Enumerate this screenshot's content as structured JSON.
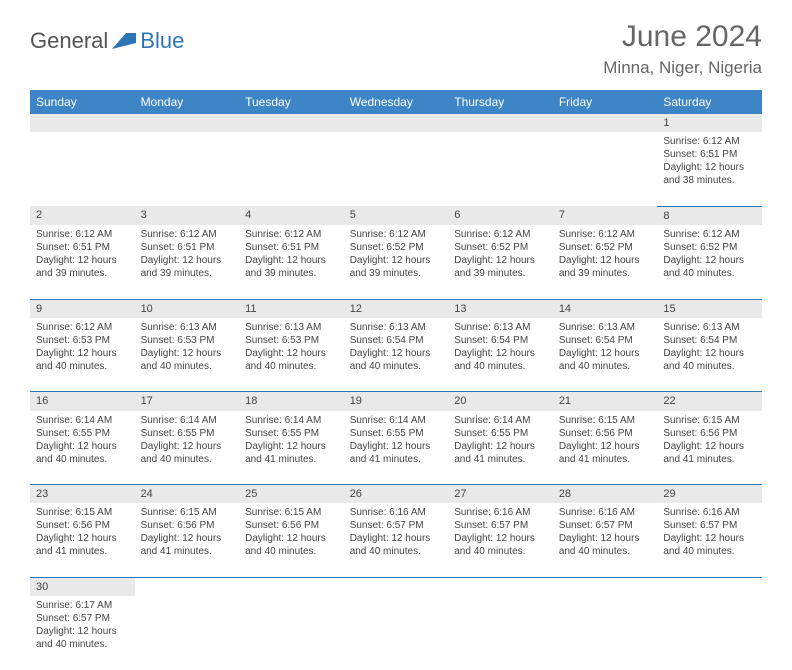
{
  "brand": {
    "text1": "General",
    "text2": "Blue",
    "shape_color": "#2e75b6"
  },
  "title": "June 2024",
  "location": "Minna, Niger, Nigeria",
  "colors": {
    "header_bg": "#3d85c6",
    "row_border": "#2e75b6",
    "daynum_bg": "#e9e9e9"
  },
  "weekdays": [
    "Sunday",
    "Monday",
    "Tuesday",
    "Wednesday",
    "Thursday",
    "Friday",
    "Saturday"
  ],
  "weeks": [
    [
      null,
      null,
      null,
      null,
      null,
      null,
      {
        "n": "1",
        "sr": "Sunrise: 6:12 AM",
        "ss": "Sunset: 6:51 PM",
        "d1": "Daylight: 12 hours",
        "d2": "and 38 minutes."
      }
    ],
    [
      {
        "n": "2",
        "sr": "Sunrise: 6:12 AM",
        "ss": "Sunset: 6:51 PM",
        "d1": "Daylight: 12 hours",
        "d2": "and 39 minutes."
      },
      {
        "n": "3",
        "sr": "Sunrise: 6:12 AM",
        "ss": "Sunset: 6:51 PM",
        "d1": "Daylight: 12 hours",
        "d2": "and 39 minutes."
      },
      {
        "n": "4",
        "sr": "Sunrise: 6:12 AM",
        "ss": "Sunset: 6:51 PM",
        "d1": "Daylight: 12 hours",
        "d2": "and 39 minutes."
      },
      {
        "n": "5",
        "sr": "Sunrise: 6:12 AM",
        "ss": "Sunset: 6:52 PM",
        "d1": "Daylight: 12 hours",
        "d2": "and 39 minutes."
      },
      {
        "n": "6",
        "sr": "Sunrise: 6:12 AM",
        "ss": "Sunset: 6:52 PM",
        "d1": "Daylight: 12 hours",
        "d2": "and 39 minutes."
      },
      {
        "n": "7",
        "sr": "Sunrise: 6:12 AM",
        "ss": "Sunset: 6:52 PM",
        "d1": "Daylight: 12 hours",
        "d2": "and 39 minutes."
      },
      {
        "n": "8",
        "sr": "Sunrise: 6:12 AM",
        "ss": "Sunset: 6:52 PM",
        "d1": "Daylight: 12 hours",
        "d2": "and 40 minutes."
      }
    ],
    [
      {
        "n": "9",
        "sr": "Sunrise: 6:12 AM",
        "ss": "Sunset: 6:53 PM",
        "d1": "Daylight: 12 hours",
        "d2": "and 40 minutes."
      },
      {
        "n": "10",
        "sr": "Sunrise: 6:13 AM",
        "ss": "Sunset: 6:53 PM",
        "d1": "Daylight: 12 hours",
        "d2": "and 40 minutes."
      },
      {
        "n": "11",
        "sr": "Sunrise: 6:13 AM",
        "ss": "Sunset: 6:53 PM",
        "d1": "Daylight: 12 hours",
        "d2": "and 40 minutes."
      },
      {
        "n": "12",
        "sr": "Sunrise: 6:13 AM",
        "ss": "Sunset: 6:54 PM",
        "d1": "Daylight: 12 hours",
        "d2": "and 40 minutes."
      },
      {
        "n": "13",
        "sr": "Sunrise: 6:13 AM",
        "ss": "Sunset: 6:54 PM",
        "d1": "Daylight: 12 hours",
        "d2": "and 40 minutes."
      },
      {
        "n": "14",
        "sr": "Sunrise: 6:13 AM",
        "ss": "Sunset: 6:54 PM",
        "d1": "Daylight: 12 hours",
        "d2": "and 40 minutes."
      },
      {
        "n": "15",
        "sr": "Sunrise: 6:13 AM",
        "ss": "Sunset: 6:54 PM",
        "d1": "Daylight: 12 hours",
        "d2": "and 40 minutes."
      }
    ],
    [
      {
        "n": "16",
        "sr": "Sunrise: 6:14 AM",
        "ss": "Sunset: 6:55 PM",
        "d1": "Daylight: 12 hours",
        "d2": "and 40 minutes."
      },
      {
        "n": "17",
        "sr": "Sunrise: 6:14 AM",
        "ss": "Sunset: 6:55 PM",
        "d1": "Daylight: 12 hours",
        "d2": "and 40 minutes."
      },
      {
        "n": "18",
        "sr": "Sunrise: 6:14 AM",
        "ss": "Sunset: 6:55 PM",
        "d1": "Daylight: 12 hours",
        "d2": "and 41 minutes."
      },
      {
        "n": "19",
        "sr": "Sunrise: 6:14 AM",
        "ss": "Sunset: 6:55 PM",
        "d1": "Daylight: 12 hours",
        "d2": "and 41 minutes."
      },
      {
        "n": "20",
        "sr": "Sunrise: 6:14 AM",
        "ss": "Sunset: 6:55 PM",
        "d1": "Daylight: 12 hours",
        "d2": "and 41 minutes."
      },
      {
        "n": "21",
        "sr": "Sunrise: 6:15 AM",
        "ss": "Sunset: 6:56 PM",
        "d1": "Daylight: 12 hours",
        "d2": "and 41 minutes."
      },
      {
        "n": "22",
        "sr": "Sunrise: 6:15 AM",
        "ss": "Sunset: 6:56 PM",
        "d1": "Daylight: 12 hours",
        "d2": "and 41 minutes."
      }
    ],
    [
      {
        "n": "23",
        "sr": "Sunrise: 6:15 AM",
        "ss": "Sunset: 6:56 PM",
        "d1": "Daylight: 12 hours",
        "d2": "and 41 minutes."
      },
      {
        "n": "24",
        "sr": "Sunrise: 6:15 AM",
        "ss": "Sunset: 6:56 PM",
        "d1": "Daylight: 12 hours",
        "d2": "and 41 minutes."
      },
      {
        "n": "25",
        "sr": "Sunrise: 6:15 AM",
        "ss": "Sunset: 6:56 PM",
        "d1": "Daylight: 12 hours",
        "d2": "and 40 minutes."
      },
      {
        "n": "26",
        "sr": "Sunrise: 6:16 AM",
        "ss": "Sunset: 6:57 PM",
        "d1": "Daylight: 12 hours",
        "d2": "and 40 minutes."
      },
      {
        "n": "27",
        "sr": "Sunrise: 6:16 AM",
        "ss": "Sunset: 6:57 PM",
        "d1": "Daylight: 12 hours",
        "d2": "and 40 minutes."
      },
      {
        "n": "28",
        "sr": "Sunrise: 6:16 AM",
        "ss": "Sunset: 6:57 PM",
        "d1": "Daylight: 12 hours",
        "d2": "and 40 minutes."
      },
      {
        "n": "29",
        "sr": "Sunrise: 6:16 AM",
        "ss": "Sunset: 6:57 PM",
        "d1": "Daylight: 12 hours",
        "d2": "and 40 minutes."
      }
    ],
    [
      {
        "n": "30",
        "sr": "Sunrise: 6:17 AM",
        "ss": "Sunset: 6:57 PM",
        "d1": "Daylight: 12 hours",
        "d2": "and 40 minutes."
      },
      null,
      null,
      null,
      null,
      null,
      null
    ]
  ]
}
